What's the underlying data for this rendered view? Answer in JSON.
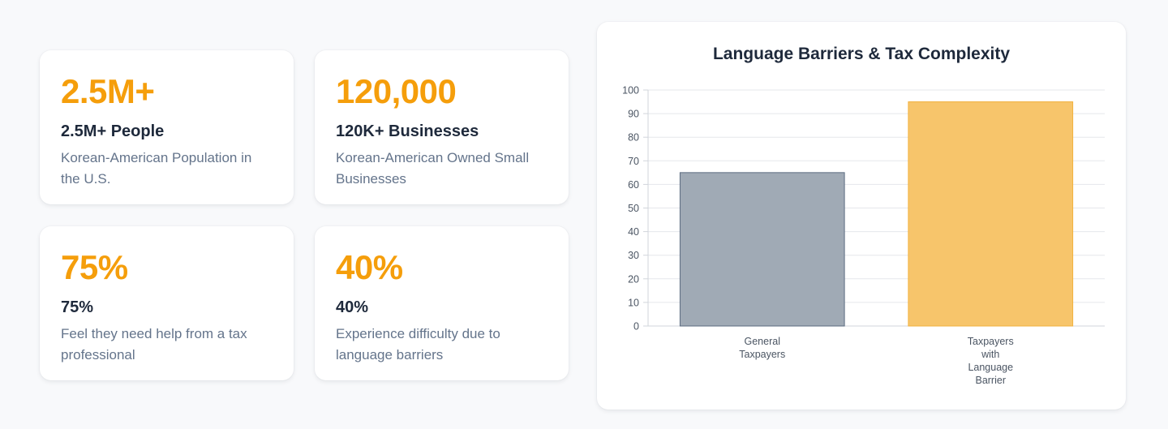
{
  "stats": [
    {
      "value": "2.5M+",
      "title": "2.5M+ People",
      "description": "Korean-American Population in the U.S."
    },
    {
      "value": "120,000",
      "title": "120K+ Businesses",
      "description": "Korean-American Owned Small Businesses"
    },
    {
      "value": "75%",
      "title": "75%",
      "description": "Feel they need help from a tax professional"
    },
    {
      "value": "40%",
      "title": "40%",
      "description": "Experience difficulty due to language barriers"
    }
  ],
  "colors": {
    "accent": "#f59e0b",
    "bar_general_fill": "#a0aab5",
    "bar_general_stroke": "#5b6b80",
    "bar_barrier_fill": "#f7c56b",
    "bar_barrier_stroke": "#f2b13d"
  },
  "chart_data": {
    "type": "bar",
    "title": "Language Barriers & Tax Complexity",
    "categories": [
      [
        "General",
        "Taxpayers"
      ],
      [
        "Taxpayers",
        "with",
        "Language",
        "Barrier"
      ]
    ],
    "values": [
      65,
      95
    ],
    "ylim": [
      0,
      100
    ],
    "yticks": [
      0,
      10,
      20,
      30,
      40,
      50,
      60,
      70,
      80,
      90,
      100
    ],
    "grid": true,
    "legend": "none"
  }
}
